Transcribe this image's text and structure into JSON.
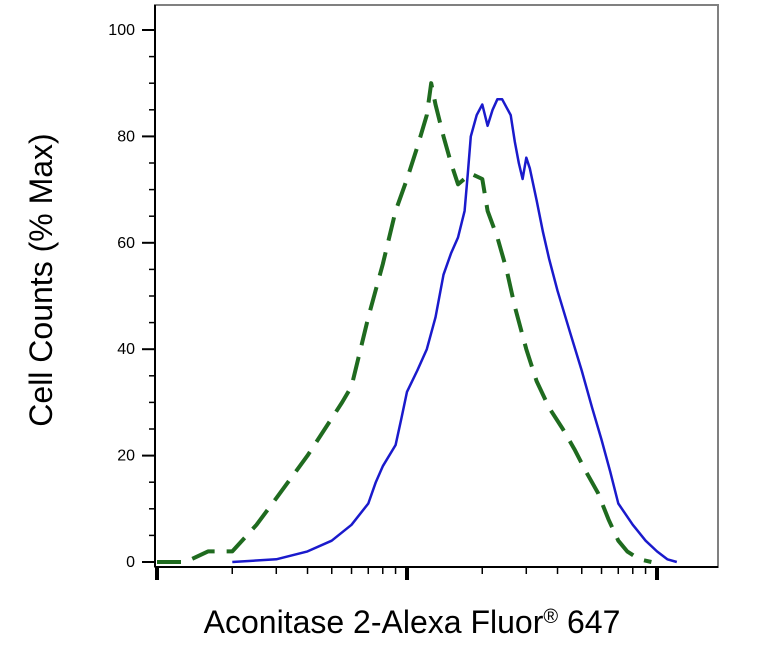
{
  "chart_data": {
    "type": "line",
    "title": "",
    "xlabel": "Aconitase 2-Alexa Fluor",
    "xlabel_superscript": "®",
    "xlabel_suffix": " 647",
    "ylabel": "Cell Counts (% Max)",
    "x_scale": "log",
    "xlim": [
      0.9,
      230
    ],
    "ylim": [
      0,
      100
    ],
    "y_ticks": [
      0,
      20,
      40,
      60,
      80,
      100
    ],
    "x_major_ticks": [
      1,
      10,
      100
    ],
    "grid": false,
    "legend": "none",
    "series": [
      {
        "color": "#1a1acc",
        "style": "solid",
        "points": [
          [
            2,
            0
          ],
          [
            3,
            0.5
          ],
          [
            4,
            2
          ],
          [
            5,
            4
          ],
          [
            6,
            7
          ],
          [
            7,
            11
          ],
          [
            7.5,
            15
          ],
          [
            8,
            18
          ],
          [
            9,
            22
          ],
          [
            9.5,
            27
          ],
          [
            10,
            32
          ],
          [
            11,
            36
          ],
          [
            12,
            40
          ],
          [
            13,
            46
          ],
          [
            14,
            54
          ],
          [
            15,
            58
          ],
          [
            16,
            61
          ],
          [
            17,
            66
          ],
          [
            17.5,
            73
          ],
          [
            18,
            80
          ],
          [
            19,
            84
          ],
          [
            20,
            86
          ],
          [
            21,
            82
          ],
          [
            22,
            85
          ],
          [
            23,
            87
          ],
          [
            24,
            87
          ],
          [
            26,
            84
          ],
          [
            27,
            79
          ],
          [
            28,
            75
          ],
          [
            29,
            72
          ],
          [
            30,
            76
          ],
          [
            31,
            74
          ],
          [
            33,
            68
          ],
          [
            35,
            62
          ],
          [
            37,
            57
          ],
          [
            40,
            51
          ],
          [
            45,
            43
          ],
          [
            50,
            36
          ],
          [
            55,
            29
          ],
          [
            60,
            23
          ],
          [
            65,
            17
          ],
          [
            70,
            11
          ],
          [
            80,
            7
          ],
          [
            90,
            4
          ],
          [
            100,
            2
          ],
          [
            110,
            0.5
          ],
          [
            120,
            0
          ]
        ]
      },
      {
        "color": "#1f6b1f",
        "style": "dashed",
        "points": [
          [
            1,
            0
          ],
          [
            1.3,
            0
          ],
          [
            1.6,
            2
          ],
          [
            2,
            2
          ],
          [
            2.5,
            7
          ],
          [
            3,
            12
          ],
          [
            4,
            20
          ],
          [
            5,
            27
          ],
          [
            5.5,
            30
          ],
          [
            6,
            33
          ],
          [
            7,
            46
          ],
          [
            8,
            56
          ],
          [
            9,
            66
          ],
          [
            10,
            72
          ],
          [
            11,
            78
          ],
          [
            12,
            84
          ],
          [
            12.5,
            90
          ],
          [
            13,
            86
          ],
          [
            14,
            80
          ],
          [
            15,
            75
          ],
          [
            16,
            71
          ],
          [
            18,
            73
          ],
          [
            20,
            72
          ],
          [
            21,
            66
          ],
          [
            23,
            61
          ],
          [
            25,
            55
          ],
          [
            27,
            48
          ],
          [
            30,
            40
          ],
          [
            33,
            34
          ],
          [
            37,
            29
          ],
          [
            42,
            25
          ],
          [
            47,
            21
          ],
          [
            52,
            17
          ],
          [
            58,
            13
          ],
          [
            64,
            8
          ],
          [
            70,
            4
          ],
          [
            76,
            2
          ],
          [
            85,
            0.5
          ],
          [
            95,
            0
          ]
        ]
      }
    ]
  }
}
